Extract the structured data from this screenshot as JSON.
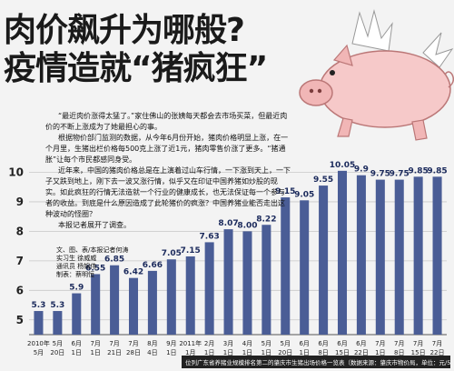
{
  "header": {
    "title_line1": "肉价飙升为哪般?",
    "title_line2": "疫情造就“猪疯狂”"
  },
  "story": [
    "“最近肉价涨得太猛了。”家住佛山的张姨每天都会去市场买菜，但最近肉价的不断上涨成为了她最担心的事。",
    "根据物价部门监测的数据，从今年6月份开始，猪肉价格明显上涨，在一个月里，生猪出栏价格每500克上涨了近1元，猪肉零售价涨了更多。“猪通胀”让每个市民都感同身受。",
    "近年来，中国的猪肉价格总是在上演着过山车行情，一下涨到天上，一下子又跌到地上，刚下去一波又涨行情，似乎又在印证中国养猪如炒股的现实。如此疯狂的行情无法造就一个行业的健康成长，也无法保证每一个参与者的收益。到底是什么原因造成了此轮猪价的疯涨？中国养猪业能否走出这种波动的怪圈？",
    "本报记者展开了调查。"
  ],
  "credits": [
    "文、图、表/本报记者何涛",
    "实习生 徐威威",
    "通讯员 杨锦伟",
    "制表：蔡明恒"
  ],
  "footer": "位列广东省养猪业规模排名第二的肇庆市生猪出场价格一览表（数据来源：肇庆市物价局，单位：元/500g）",
  "chart_data": {
    "type": "bar",
    "categories": [
      "2010年\n5月",
      "5月\n20日",
      "6月\n1日",
      "7月\n1日",
      "7月\n21日",
      "7月\n28日",
      "8月\n4日",
      "9月\n1日",
      "2011年\n1月",
      "2月\n1日",
      "3月\n1日",
      "4月\n1日",
      "5月\n1日",
      "5月\n20日",
      "6月\n1日",
      "6月\n8日",
      "6月\n15日",
      "6月\n22日",
      "7月\n1日",
      "7月\n8日",
      "7月\n15日",
      "7月\n22日"
    ],
    "values": [
      5.3,
      5.3,
      5.9,
      6.55,
      6.85,
      6.42,
      6.66,
      7.05,
      7.15,
      7.63,
      8.07,
      8.0,
      8.22,
      9.15,
      9.05,
      9.55,
      10.05,
      9.9,
      9.75,
      9.75,
      9.85,
      9.85
    ],
    "value_labels": [
      "5.3",
      "5.3",
      "5.9",
      "6.55",
      "6.85",
      "6.42",
      "6.66",
      "7.05",
      "7.15",
      "7.63",
      "8.07",
      "8.00",
      "8.22",
      "9.15",
      "9.05",
      "9.55",
      "10.05",
      "9.9",
      "9.75",
      "9.75",
      "9.85",
      "9.85"
    ],
    "yticks": [
      "5",
      "6",
      "7",
      "8",
      "9",
      "10"
    ],
    "ylim": [
      4.5,
      10.6
    ],
    "bar_color": "#4a5d96",
    "label_color": "#1b2a5c"
  }
}
